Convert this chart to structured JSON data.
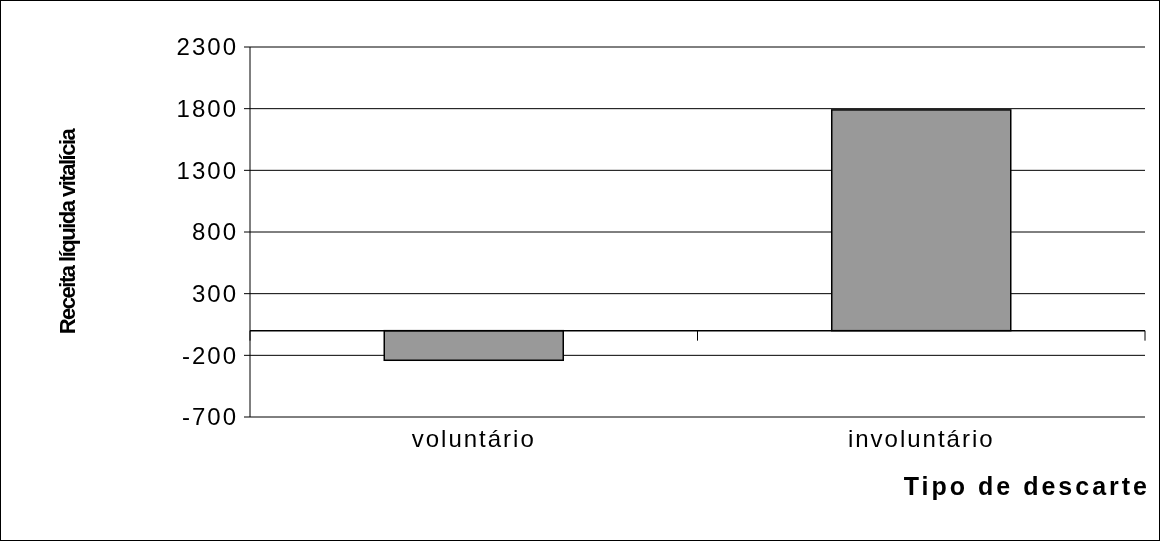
{
  "chart_data": {
    "type": "bar",
    "xlabel": "Tipo de descarte",
    "ylabel": "Receita líquida vitalícia",
    "categories": [
      "voluntário",
      "involuntário"
    ],
    "values": [
      -240,
      1790
    ],
    "color": "#999999",
    "ylim": [
      -700,
      2300
    ],
    "yticks": [
      -700,
      -200,
      300,
      800,
      1300,
      1800,
      2300
    ],
    "grid": "y"
  }
}
